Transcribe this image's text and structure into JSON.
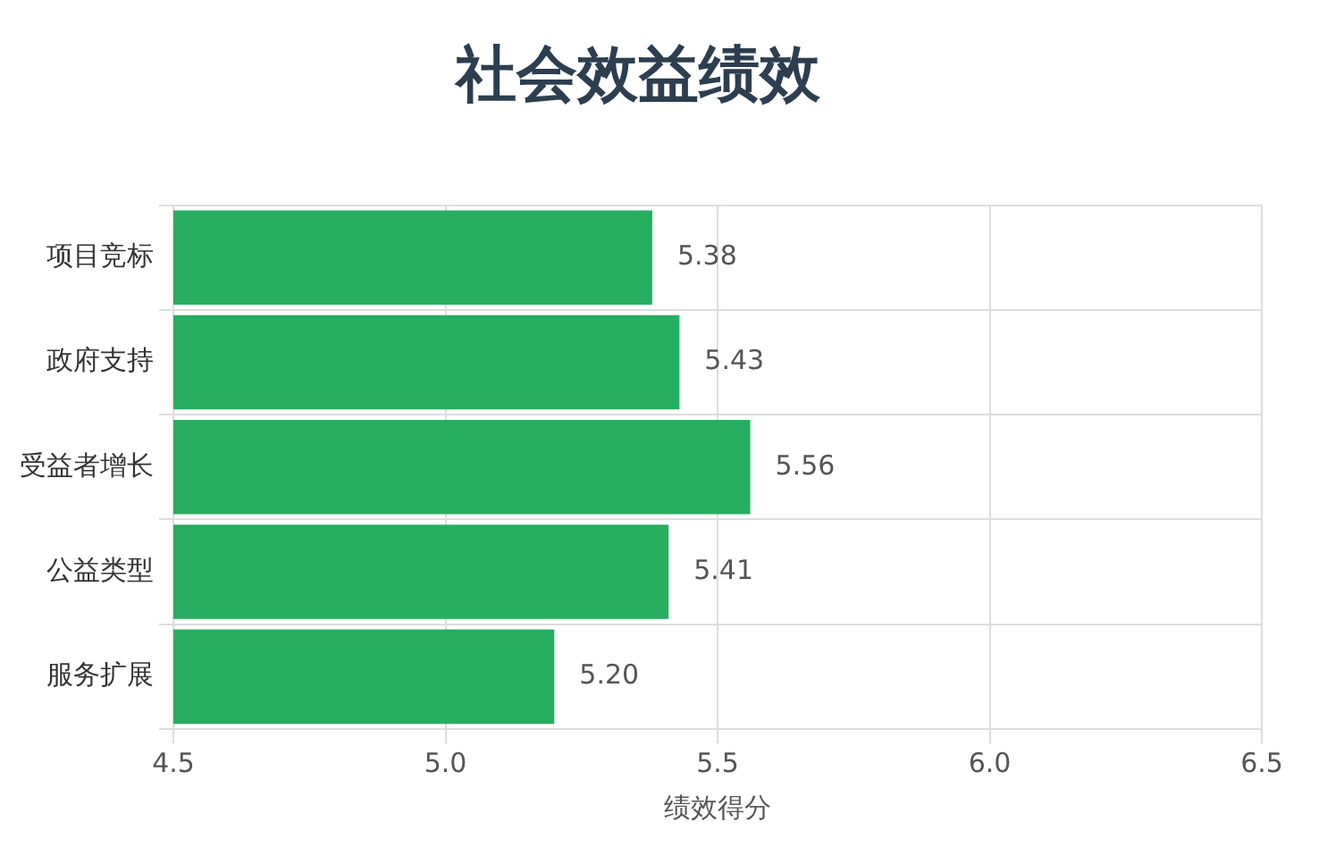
{
  "chart_data": {
    "type": "bar",
    "title": "社会效益绩效",
    "xlabel": "绩效得分",
    "orientation": "horizontal",
    "categories": [
      "项目竞标",
      "政府支持",
      "受益者增长",
      "公益类型",
      "服务扩展"
    ],
    "values": [
      5.38,
      5.43,
      5.56,
      5.41,
      5.2
    ],
    "value_labels": [
      "5.38",
      "5.43",
      "5.56",
      "5.41",
      "5.20"
    ],
    "color": "#27ae60",
    "xlim": [
      4.5,
      6.5
    ],
    "xticks": [
      4.5,
      {
        "value": 5,
        "label": "5.0"
      },
      5.5,
      {
        "value": 6,
        "label": "6.0"
      },
      6.5
    ],
    "grid": true,
    "legend": false
  }
}
